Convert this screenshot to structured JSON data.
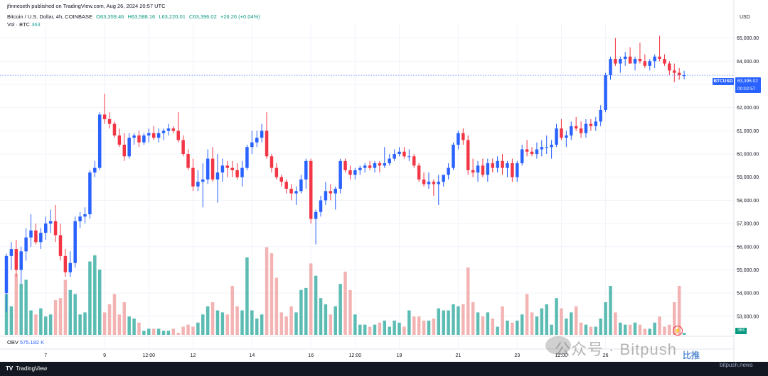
{
  "header": {
    "publisher_line": "jfinneseth published on TradingView.com, Aug 26, 2024 20:57 UTC",
    "legend": {
      "symbol": "Bitcoin / U.S. Dollar, 4h, COINBASE",
      "open": "O63,359.46",
      "high": "H63,588.16",
      "low": "L63,220.01",
      "close": "C63,396.02",
      "change": "+26.26 (+0.04%)"
    },
    "vol_label": "Vol · BTC",
    "vol_value": "363"
  },
  "price_axis": {
    "currency": "USD",
    "symbol_tag": "BTCUSD",
    "last_price": "63,396.02",
    "countdown": "00:02:57",
    "volume_tag": "363"
  },
  "obv": {
    "label": "OBV",
    "value": "575.182 K"
  },
  "footer": {
    "brand": "TradingView"
  },
  "watermark": {
    "main": "公众号 · Bitpush",
    "site": "bitpush.news",
    "tag": "比推"
  },
  "colors": {
    "up": "#2962ff",
    "down": "#f23645",
    "vol_up": "#26a69a",
    "vol_down": "#ef9a9a",
    "grid": "#f0f3fa"
  },
  "chart_data": {
    "type": "candlestick",
    "title": "Bitcoin / U.S. Dollar, 4h, COINBASE",
    "ylabel": "USD",
    "ylim": [
      52200,
      65600
    ],
    "y_ticks": [
      53000,
      54000,
      55000,
      56000,
      57000,
      58000,
      59000,
      60000,
      61000,
      62000,
      63000,
      64000,
      65000
    ],
    "x_tick_labels": [
      {
        "label": "7",
        "bar": 8
      },
      {
        "label": "9",
        "bar": 20
      },
      {
        "label": "12:00",
        "bar": 29
      },
      {
        "label": "12",
        "bar": 38
      },
      {
        "label": "14",
        "bar": 50
      },
      {
        "label": "16",
        "bar": 62
      },
      {
        "label": "12:00",
        "bar": 71
      },
      {
        "label": "19",
        "bar": 80
      },
      {
        "label": "21",
        "bar": 92
      },
      {
        "label": "23",
        "bar": 104
      },
      {
        "label": "12:00",
        "bar": 113
      },
      {
        "label": "26",
        "bar": 122
      }
    ],
    "candles": [
      {
        "o": 54000,
        "h": 55700,
        "l": 53200,
        "c": 55600,
        "v": 20
      },
      {
        "o": 55600,
        "h": 56200,
        "l": 55000,
        "c": 55900,
        "v": 14
      },
      {
        "o": 55900,
        "h": 56300,
        "l": 54700,
        "c": 55000,
        "v": 30
      },
      {
        "o": 55000,
        "h": 56000,
        "l": 54400,
        "c": 55800,
        "v": 25
      },
      {
        "o": 55800,
        "h": 56800,
        "l": 55400,
        "c": 56400,
        "v": 27
      },
      {
        "o": 56400,
        "h": 57400,
        "l": 56000,
        "c": 56700,
        "v": 12
      },
      {
        "o": 56700,
        "h": 57000,
        "l": 56100,
        "c": 56200,
        "v": 10
      },
      {
        "o": 56200,
        "h": 56800,
        "l": 55900,
        "c": 56600,
        "v": 13
      },
      {
        "o": 56600,
        "h": 57300,
        "l": 56300,
        "c": 57000,
        "v": 9
      },
      {
        "o": 57000,
        "h": 57600,
        "l": 56600,
        "c": 57100,
        "v": 10
      },
      {
        "o": 57100,
        "h": 57800,
        "l": 56200,
        "c": 56500,
        "v": 17
      },
      {
        "o": 56500,
        "h": 57000,
        "l": 55400,
        "c": 55600,
        "v": 18
      },
      {
        "o": 55600,
        "h": 55900,
        "l": 54700,
        "c": 54900,
        "v": 27
      },
      {
        "o": 54900,
        "h": 55800,
        "l": 54700,
        "c": 55300,
        "v": 22
      },
      {
        "o": 55300,
        "h": 57300,
        "l": 55100,
        "c": 57100,
        "v": 20
      },
      {
        "o": 57100,
        "h": 57500,
        "l": 56800,
        "c": 57300,
        "v": 10
      },
      {
        "o": 57300,
        "h": 57700,
        "l": 57000,
        "c": 57400,
        "v": 11
      },
      {
        "o": 57400,
        "h": 59300,
        "l": 57200,
        "c": 59200,
        "v": 36
      },
      {
        "o": 59200,
        "h": 59700,
        "l": 59000,
        "c": 59400,
        "v": 39
      },
      {
        "o": 59400,
        "h": 61800,
        "l": 59300,
        "c": 61700,
        "v": 32
      },
      {
        "o": 61700,
        "h": 62600,
        "l": 61300,
        "c": 61500,
        "v": 11
      },
      {
        "o": 61500,
        "h": 61800,
        "l": 61100,
        "c": 61300,
        "v": 15
      },
      {
        "o": 61300,
        "h": 61400,
        "l": 60700,
        "c": 60800,
        "v": 20
      },
      {
        "o": 60800,
        "h": 61100,
        "l": 60300,
        "c": 60400,
        "v": 10
      },
      {
        "o": 60400,
        "h": 60900,
        "l": 59700,
        "c": 59900,
        "v": 16
      },
      {
        "o": 59900,
        "h": 60900,
        "l": 59800,
        "c": 60700,
        "v": 9
      },
      {
        "o": 60700,
        "h": 60900,
        "l": 60400,
        "c": 60800,
        "v": 8
      },
      {
        "o": 60800,
        "h": 61000,
        "l": 60300,
        "c": 60500,
        "v": 6
      },
      {
        "o": 60500,
        "h": 60900,
        "l": 60400,
        "c": 60800,
        "v": 2
      },
      {
        "o": 60800,
        "h": 61100,
        "l": 60500,
        "c": 60900,
        "v": 3
      },
      {
        "o": 60900,
        "h": 61200,
        "l": 60600,
        "c": 60700,
        "v": 3
      },
      {
        "o": 60700,
        "h": 61100,
        "l": 60500,
        "c": 60900,
        "v": 3
      },
      {
        "o": 60900,
        "h": 61100,
        "l": 60600,
        "c": 61000,
        "v": 2
      },
      {
        "o": 61000,
        "h": 61300,
        "l": 60800,
        "c": 61100,
        "v": 2
      },
      {
        "o": 61100,
        "h": 61200,
        "l": 60900,
        "c": 61000,
        "v": 3
      },
      {
        "o": 61000,
        "h": 61800,
        "l": 60500,
        "c": 60600,
        "v": 1
      },
      {
        "o": 60600,
        "h": 60800,
        "l": 59900,
        "c": 60000,
        "v": 4
      },
      {
        "o": 60000,
        "h": 60200,
        "l": 59300,
        "c": 59400,
        "v": 5
      },
      {
        "o": 59400,
        "h": 59800,
        "l": 58400,
        "c": 58600,
        "v": 4
      },
      {
        "o": 58600,
        "h": 59300,
        "l": 58400,
        "c": 58800,
        "v": 6
      },
      {
        "o": 58800,
        "h": 59600,
        "l": 57700,
        "c": 58900,
        "v": 10
      },
      {
        "o": 58900,
        "h": 60200,
        "l": 58700,
        "c": 59800,
        "v": 14
      },
      {
        "o": 59800,
        "h": 60300,
        "l": 58800,
        "c": 58900,
        "v": 16
      },
      {
        "o": 58900,
        "h": 60000,
        "l": 57900,
        "c": 59200,
        "v": 12
      },
      {
        "o": 59200,
        "h": 59800,
        "l": 58800,
        "c": 59500,
        "v": 11
      },
      {
        "o": 59500,
        "h": 59700,
        "l": 59000,
        "c": 59400,
        "v": 10
      },
      {
        "o": 59400,
        "h": 59700,
        "l": 59000,
        "c": 59300,
        "v": 24
      },
      {
        "o": 59300,
        "h": 59600,
        "l": 58900,
        "c": 59000,
        "v": 14
      },
      {
        "o": 59000,
        "h": 59700,
        "l": 58600,
        "c": 59400,
        "v": 12
      },
      {
        "o": 59400,
        "h": 60400,
        "l": 59300,
        "c": 60300,
        "v": 38
      },
      {
        "o": 60300,
        "h": 61000,
        "l": 60000,
        "c": 60500,
        "v": 12
      },
      {
        "o": 60500,
        "h": 61000,
        "l": 60300,
        "c": 60700,
        "v": 8
      },
      {
        "o": 60700,
        "h": 61300,
        "l": 60500,
        "c": 61000,
        "v": 10
      },
      {
        "o": 61000,
        "h": 61800,
        "l": 59800,
        "c": 59900,
        "v": 43
      },
      {
        "o": 59900,
        "h": 60000,
        "l": 59200,
        "c": 59400,
        "v": 40
      },
      {
        "o": 59400,
        "h": 59600,
        "l": 58900,
        "c": 59000,
        "v": 28
      },
      {
        "o": 59000,
        "h": 59100,
        "l": 58600,
        "c": 58800,
        "v": 11
      },
      {
        "o": 58800,
        "h": 58900,
        "l": 58300,
        "c": 58500,
        "v": 9
      },
      {
        "o": 58500,
        "h": 58700,
        "l": 58000,
        "c": 58300,
        "v": 14
      },
      {
        "o": 58300,
        "h": 58600,
        "l": 57800,
        "c": 58400,
        "v": 11
      },
      {
        "o": 58400,
        "h": 59100,
        "l": 58300,
        "c": 58900,
        "v": 22
      },
      {
        "o": 58900,
        "h": 59800,
        "l": 58500,
        "c": 59700,
        "v": 23
      },
      {
        "o": 59700,
        "h": 59800,
        "l": 57000,
        "c": 57200,
        "v": 35
      },
      {
        "o": 57200,
        "h": 57600,
        "l": 56100,
        "c": 57500,
        "v": 29
      },
      {
        "o": 57500,
        "h": 58200,
        "l": 57300,
        "c": 58000,
        "v": 18
      },
      {
        "o": 58000,
        "h": 58800,
        "l": 57800,
        "c": 58400,
        "v": 15
      },
      {
        "o": 58400,
        "h": 58700,
        "l": 58000,
        "c": 58300,
        "v": 10
      },
      {
        "o": 58300,
        "h": 58600,
        "l": 57600,
        "c": 58500,
        "v": 14
      },
      {
        "o": 58500,
        "h": 59800,
        "l": 58300,
        "c": 59700,
        "v": 25
      },
      {
        "o": 59700,
        "h": 59800,
        "l": 59200,
        "c": 59300,
        "v": 31
      },
      {
        "o": 59300,
        "h": 59500,
        "l": 58900,
        "c": 59100,
        "v": 22
      },
      {
        "o": 59100,
        "h": 59400,
        "l": 58900,
        "c": 59300,
        "v": 10
      },
      {
        "o": 59300,
        "h": 59500,
        "l": 59100,
        "c": 59400,
        "v": 5
      },
      {
        "o": 59400,
        "h": 59600,
        "l": 59200,
        "c": 59500,
        "v": 5
      },
      {
        "o": 59500,
        "h": 59700,
        "l": 59300,
        "c": 59400,
        "v": 4
      },
      {
        "o": 59400,
        "h": 59700,
        "l": 59200,
        "c": 59600,
        "v": 5
      },
      {
        "o": 59600,
        "h": 59700,
        "l": 59200,
        "c": 59500,
        "v": 6
      },
      {
        "o": 59500,
        "h": 60300,
        "l": 59400,
        "c": 59600,
        "v": 7
      },
      {
        "o": 59600,
        "h": 60000,
        "l": 59500,
        "c": 59800,
        "v": 4
      },
      {
        "o": 59800,
        "h": 60200,
        "l": 59700,
        "c": 60000,
        "v": 7
      },
      {
        "o": 60000,
        "h": 60300,
        "l": 59900,
        "c": 60100,
        "v": 6
      },
      {
        "o": 60100,
        "h": 60300,
        "l": 59800,
        "c": 59900,
        "v": 4
      },
      {
        "o": 59900,
        "h": 60200,
        "l": 59700,
        "c": 59900,
        "v": 12
      },
      {
        "o": 59900,
        "h": 60000,
        "l": 59400,
        "c": 59500,
        "v": 9
      },
      {
        "o": 59500,
        "h": 59600,
        "l": 58800,
        "c": 58900,
        "v": 9
      },
      {
        "o": 58900,
        "h": 59200,
        "l": 58600,
        "c": 58700,
        "v": 7
      },
      {
        "o": 58700,
        "h": 59200,
        "l": 58500,
        "c": 58800,
        "v": 7
      },
      {
        "o": 58800,
        "h": 58900,
        "l": 58200,
        "c": 58700,
        "v": 8
      },
      {
        "o": 58700,
        "h": 59100,
        "l": 57800,
        "c": 58800,
        "v": 13
      },
      {
        "o": 58800,
        "h": 59100,
        "l": 58600,
        "c": 59100,
        "v": 12
      },
      {
        "o": 59100,
        "h": 59600,
        "l": 58900,
        "c": 59400,
        "v": 12
      },
      {
        "o": 59400,
        "h": 60500,
        "l": 59300,
        "c": 60400,
        "v": 15
      },
      {
        "o": 60400,
        "h": 61000,
        "l": 60200,
        "c": 60900,
        "v": 14
      },
      {
        "o": 60900,
        "h": 61100,
        "l": 60400,
        "c": 60600,
        "v": 15
      },
      {
        "o": 60600,
        "h": 60800,
        "l": 59100,
        "c": 59300,
        "v": 33
      },
      {
        "o": 59300,
        "h": 59800,
        "l": 59000,
        "c": 59200,
        "v": 16
      },
      {
        "o": 59200,
        "h": 59700,
        "l": 58800,
        "c": 59500,
        "v": 11
      },
      {
        "o": 59500,
        "h": 59800,
        "l": 59000,
        "c": 59100,
        "v": 9
      },
      {
        "o": 59100,
        "h": 59800,
        "l": 58800,
        "c": 59600,
        "v": 11
      },
      {
        "o": 59600,
        "h": 59800,
        "l": 59200,
        "c": 59400,
        "v": 8
      },
      {
        "o": 59400,
        "h": 59900,
        "l": 59200,
        "c": 59700,
        "v": 4
      },
      {
        "o": 59700,
        "h": 60000,
        "l": 59100,
        "c": 59400,
        "v": 14
      },
      {
        "o": 59400,
        "h": 59700,
        "l": 59000,
        "c": 59600,
        "v": 7
      },
      {
        "o": 59600,
        "h": 59800,
        "l": 58800,
        "c": 59000,
        "v": 6
      },
      {
        "o": 59000,
        "h": 59700,
        "l": 58800,
        "c": 59600,
        "v": 7
      },
      {
        "o": 59600,
        "h": 60400,
        "l": 59500,
        "c": 60200,
        "v": 10
      },
      {
        "o": 60200,
        "h": 60600,
        "l": 59900,
        "c": 60100,
        "v": 20
      },
      {
        "o": 60100,
        "h": 60300,
        "l": 59900,
        "c": 60000,
        "v": 11
      },
      {
        "o": 60000,
        "h": 60500,
        "l": 59800,
        "c": 60200,
        "v": 9
      },
      {
        "o": 60200,
        "h": 60600,
        "l": 59900,
        "c": 60300,
        "v": 13
      },
      {
        "o": 60300,
        "h": 60800,
        "l": 60000,
        "c": 60300,
        "v": 15
      },
      {
        "o": 60300,
        "h": 60600,
        "l": 59800,
        "c": 60400,
        "v": 5
      },
      {
        "o": 60400,
        "h": 61300,
        "l": 60300,
        "c": 61100,
        "v": 18
      },
      {
        "o": 61100,
        "h": 61500,
        "l": 60600,
        "c": 60700,
        "v": 13
      },
      {
        "o": 60700,
        "h": 61000,
        "l": 60300,
        "c": 60800,
        "v": 8
      },
      {
        "o": 60800,
        "h": 61400,
        "l": 60600,
        "c": 61200,
        "v": 11
      },
      {
        "o": 61200,
        "h": 61600,
        "l": 61000,
        "c": 61100,
        "v": 14
      },
      {
        "o": 61100,
        "h": 61400,
        "l": 60700,
        "c": 60900,
        "v": 6
      },
      {
        "o": 60900,
        "h": 61500,
        "l": 60700,
        "c": 61300,
        "v": 5
      },
      {
        "o": 61300,
        "h": 61500,
        "l": 61000,
        "c": 61200,
        "v": 4
      },
      {
        "o": 61200,
        "h": 61600,
        "l": 61000,
        "c": 61400,
        "v": 4
      },
      {
        "o": 61400,
        "h": 62100,
        "l": 61200,
        "c": 61900,
        "v": 8
      },
      {
        "o": 61900,
        "h": 63500,
        "l": 61800,
        "c": 63400,
        "v": 16
      },
      {
        "o": 63400,
        "h": 64200,
        "l": 63200,
        "c": 64100,
        "v": 24
      },
      {
        "o": 64100,
        "h": 65000,
        "l": 63800,
        "c": 63900,
        "v": 11
      },
      {
        "o": 63900,
        "h": 64200,
        "l": 63500,
        "c": 64100,
        "v": 6
      },
      {
        "o": 64100,
        "h": 64400,
        "l": 63800,
        "c": 64200,
        "v": 5
      },
      {
        "o": 64200,
        "h": 64600,
        "l": 63900,
        "c": 63900,
        "v": 5
      },
      {
        "o": 63900,
        "h": 64200,
        "l": 63600,
        "c": 64100,
        "v": 6
      },
      {
        "o": 64100,
        "h": 64800,
        "l": 63900,
        "c": 64000,
        "v": 5
      },
      {
        "o": 64000,
        "h": 64300,
        "l": 63700,
        "c": 63800,
        "v": 3
      },
      {
        "o": 63800,
        "h": 64100,
        "l": 63600,
        "c": 64000,
        "v": 3
      },
      {
        "o": 64000,
        "h": 64300,
        "l": 63700,
        "c": 64200,
        "v": 6
      },
      {
        "o": 64200,
        "h": 65100,
        "l": 64000,
        "c": 64100,
        "v": 9
      },
      {
        "o": 64100,
        "h": 64300,
        "l": 63800,
        "c": 63900,
        "v": 4
      },
      {
        "o": 63900,
        "h": 64000,
        "l": 63400,
        "c": 63600,
        "v": 5
      },
      {
        "o": 63600,
        "h": 63900,
        "l": 63100,
        "c": 63500,
        "v": 16
      },
      {
        "o": 63500,
        "h": 63700,
        "l": 63200,
        "c": 63400,
        "v": 24
      },
      {
        "o": 63360,
        "h": 63590,
        "l": 63220,
        "c": 63396,
        "v": 1
      }
    ],
    "volume_ylim": [
      0,
      40
    ],
    "obv_value": "575.182 K"
  }
}
